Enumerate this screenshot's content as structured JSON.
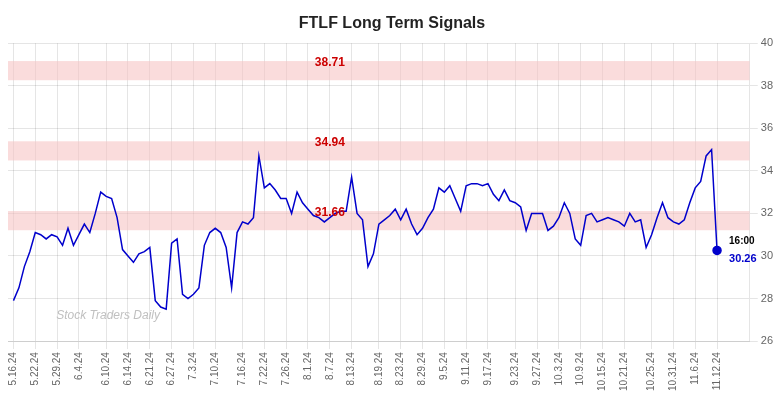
{
  "chart_data": {
    "type": "line",
    "title": "FTLF Long Term Signals",
    "categories": [
      "5.16.24",
      null,
      null,
      null,
      "5.22.24",
      null,
      null,
      null,
      "5.29.24",
      null,
      null,
      null,
      "6.4.24",
      null,
      null,
      null,
      null,
      "6.10.24",
      null,
      null,
      null,
      "6.14.24",
      null,
      null,
      null,
      "6.21.24",
      null,
      null,
      null,
      "6.27.24",
      null,
      null,
      null,
      "7.3.24",
      null,
      null,
      null,
      "7.10.24",
      null,
      null,
      null,
      null,
      "7.16.24",
      null,
      null,
      null,
      "7.22.24",
      null,
      null,
      null,
      "7.26.24",
      null,
      null,
      null,
      "8.1.24",
      null,
      null,
      null,
      "8.7.24",
      null,
      null,
      null,
      "8.13.24",
      null,
      null,
      null,
      null,
      "8.19.24",
      null,
      null,
      null,
      "8.23.24",
      null,
      null,
      null,
      "8.29.24",
      null,
      null,
      null,
      "9.5.24",
      null,
      null,
      null,
      "9.11.24",
      null,
      null,
      null,
      "9.17.24",
      null,
      null,
      null,
      null,
      "9.23.24",
      null,
      null,
      null,
      "9.27.24",
      null,
      null,
      null,
      "10.3.24",
      null,
      null,
      null,
      "10.9.24",
      null,
      null,
      null,
      "10.15.24",
      null,
      null,
      null,
      "10.21.24",
      null,
      null,
      null,
      null,
      "10.25.24",
      null,
      null,
      null,
      "10.31.24",
      null,
      null,
      null,
      "11.6.24",
      null,
      null,
      null,
      "11.12.24"
    ],
    "values": [
      27.9,
      28.5,
      29.5,
      30.2,
      31.1,
      31.0,
      30.8,
      31.0,
      30.9,
      30.5,
      31.3,
      30.5,
      31.0,
      31.5,
      31.1,
      32.0,
      33.0,
      32.8,
      32.7,
      31.8,
      30.3,
      30.0,
      29.7,
      30.1,
      30.2,
      30.4,
      27.9,
      27.6,
      27.5,
      30.6,
      30.8,
      28.2,
      28.0,
      28.2,
      28.5,
      30.5,
      31.1,
      31.3,
      31.1,
      30.4,
      28.5,
      31.1,
      31.6,
      31.5,
      31.8,
      34.7,
      33.2,
      33.4,
      33.1,
      32.7,
      32.7,
      32.0,
      33.0,
      32.5,
      32.2,
      31.9,
      31.8,
      31.6,
      31.8,
      32.0,
      32.1,
      32.1,
      33.7,
      32.0,
      31.7,
      29.5,
      30.1,
      31.5,
      31.7,
      31.9,
      32.2,
      31.7,
      32.2,
      31.5,
      31.0,
      31.3,
      31.8,
      32.2,
      33.2,
      33.0,
      33.3,
      32.7,
      32.1,
      33.3,
      33.4,
      33.4,
      33.3,
      33.4,
      32.9,
      32.6,
      33.1,
      32.6,
      32.5,
      32.3,
      31.2,
      32.0,
      32.0,
      32.0,
      31.2,
      31.4,
      31.8,
      32.5,
      32.0,
      30.8,
      30.5,
      31.9,
      32.0,
      31.6,
      31.7,
      31.8,
      31.7,
      31.6,
      31.4,
      32.0,
      31.6,
      31.7,
      30.4,
      31.0,
      31.8,
      32.5,
      31.8,
      31.6,
      31.5,
      31.7,
      32.5,
      33.2,
      33.5,
      34.7,
      35.0,
      30.26
    ],
    "color": "#0000cc",
    "marker": "end",
    "hlines": [
      {
        "y": 38.71,
        "half_height": 0.45,
        "label": "38.71",
        "color": "#f5c0c0"
      },
      {
        "y": 34.94,
        "half_height": 0.45,
        "label": "34.94",
        "color": "#f5c0c0"
      },
      {
        "y": 31.66,
        "half_height": 0.45,
        "label": "31.66",
        "color": "#f5c0c0"
      }
    ],
    "end_labels": [
      "16:00",
      "30.26"
    ],
    "watermark": "Stock Traders Daily",
    "ylim": [
      26,
      40
    ],
    "yticks": [
      26,
      28,
      30,
      32,
      34,
      36,
      38,
      40
    ],
    "grid": true
  }
}
